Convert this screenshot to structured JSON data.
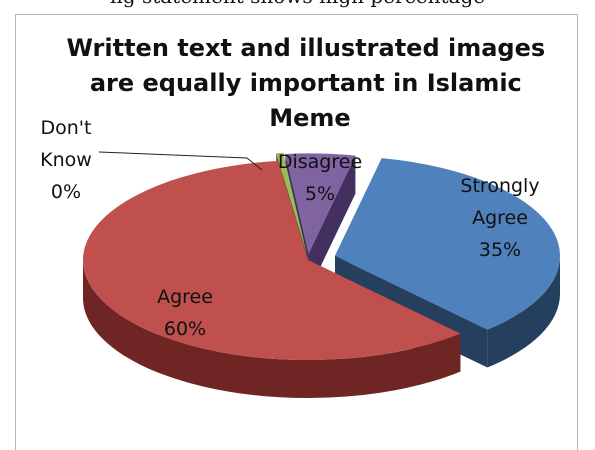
{
  "caption_fragment": "ng statement shows high percentage",
  "chart_data": {
    "type": "pie",
    "title": "Written text and illustrated images are equally important in Islamic Meme",
    "title_lines": [
      "Written text and illustrated images",
      "are equally important in Islamic",
      "Meme"
    ],
    "slices": [
      {
        "label": "Strongly Agree",
        "label_lines": [
          "Strongly",
          "Agree"
        ],
        "value": 35,
        "value_text": "35%",
        "color": "#4f81bd",
        "side_color": "#24405e"
      },
      {
        "label": "Agree",
        "label_lines": [
          "Agree"
        ],
        "value": 60,
        "value_text": "60%",
        "color": "#c0504d",
        "side_color": "#6e2523"
      },
      {
        "label": "Don't Know",
        "label_lines": [
          "Don't",
          "Know"
        ],
        "value": 0,
        "value_text": "0%",
        "color": "#9bbb59",
        "side_color": "#4c6224"
      },
      {
        "label": "Disagree",
        "label_lines": [
          "Disagree"
        ],
        "value": 5,
        "value_text": "5%",
        "color": "#8064a2",
        "side_color": "#43305e"
      }
    ],
    "style": "3d-exploded-pie",
    "legend": "none"
  }
}
